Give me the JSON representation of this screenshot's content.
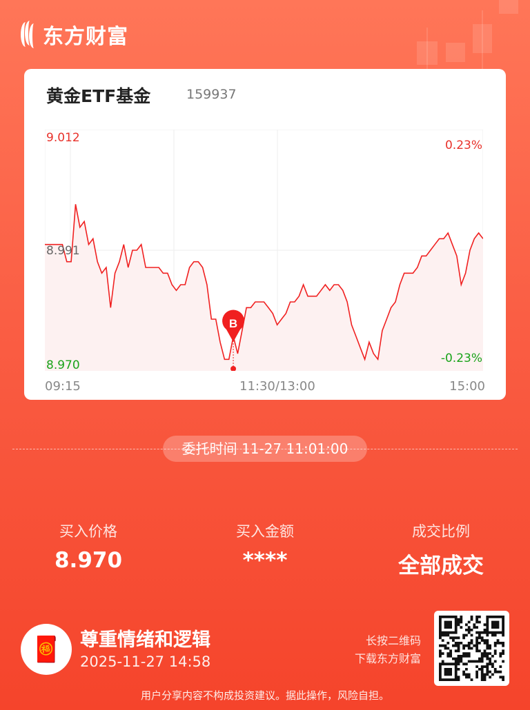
{
  "brand": {
    "name": "东方财富"
  },
  "card": {
    "title": "黄金ETF基金",
    "code": "159937"
  },
  "chart_data": {
    "type": "line",
    "x_ticks": [
      "09:15",
      "11:30/13:00",
      "15:00"
    ],
    "ylim": [
      8.97,
      9.012
    ],
    "y_labels": {
      "top": "9.012",
      "mid": "8.991",
      "bottom": "8.970"
    },
    "pct_labels": {
      "top": "0.23%",
      "bottom": "-0.23%"
    },
    "prev_close": 8.991,
    "grid": true,
    "values": [
      8.992,
      8.992,
      8.992,
      8.992,
      8.992,
      8.989,
      8.989,
      8.999,
      8.995,
      8.996,
      8.992,
      8.993,
      8.989,
      8.987,
      8.988,
      8.981,
      8.987,
      8.989,
      8.992,
      8.988,
      8.991,
      8.991,
      8.992,
      8.988,
      8.988,
      8.988,
      8.988,
      8.987,
      8.987,
      8.985,
      8.984,
      8.985,
      8.985,
      8.988,
      8.989,
      8.989,
      8.988,
      8.985,
      8.979,
      8.979,
      8.975,
      8.972,
      8.972,
      8.976,
      8.973,
      8.977,
      8.981,
      8.981,
      8.982,
      8.982,
      8.982,
      8.981,
      8.98,
      8.978,
      8.979,
      8.98,
      8.982,
      8.982,
      8.983,
      8.985,
      8.983,
      8.983,
      8.983,
      8.984,
      8.985,
      8.984,
      8.985,
      8.985,
      8.984,
      8.982,
      8.978,
      8.976,
      8.974,
      8.972,
      8.975,
      8.973,
      8.972,
      8.977,
      8.979,
      8.981,
      8.982,
      8.985,
      8.987,
      8.987,
      8.987,
      8.988,
      8.99,
      8.99,
      8.991,
      8.992,
      8.993,
      8.993,
      8.994,
      8.992,
      8.99,
      8.985,
      8.987,
      8.991,
      8.993,
      8.994,
      8.993
    ],
    "buy_marker": {
      "label": "B",
      "index": 43,
      "price": 8.97
    },
    "colors": {
      "line": "#f02020",
      "up": "#e8312a",
      "down": "#1aa31a",
      "fill": "#fdf1f1"
    }
  },
  "order": {
    "label": "委托时间",
    "time": "11-27 11:01:00"
  },
  "stats": [
    {
      "label": "买入价格",
      "value": "8.970"
    },
    {
      "label": "买入金额",
      "value": "****"
    },
    {
      "label": "成交比例",
      "value": "全部成交"
    }
  ],
  "footer": {
    "slogan": "尊重情绪和逻辑",
    "datetime": "2025-11-27 14:58",
    "qr_line1": "长按二维码",
    "qr_line2": "下载东方财富",
    "disclaimer": "用户分享内容不构成投资建议。据此操作，风险自担。"
  }
}
